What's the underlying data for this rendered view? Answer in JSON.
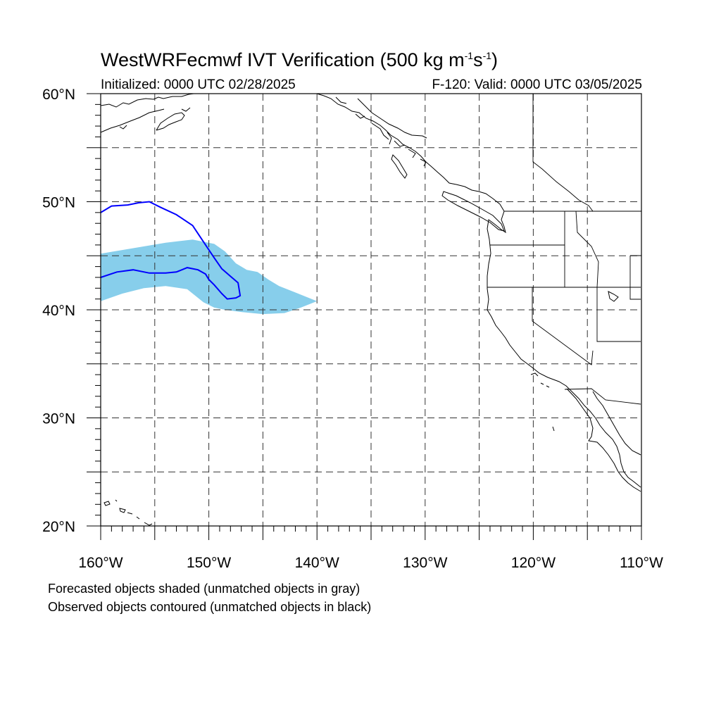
{
  "title": {
    "main": "WestWRFecmwf IVT Verification (500 kg m",
    "unit_exp1": "-1",
    "unit_mid": "s",
    "unit_exp2": "-1",
    "unit_close": ")"
  },
  "subtitle": {
    "initialized": "Initialized: 0000 UTC 02/28/2025",
    "valid": "F-120: Valid: 0000 UTC 03/05/2025"
  },
  "map": {
    "lon_range": [
      -160,
      -110
    ],
    "lat_range": [
      20,
      60
    ],
    "grid": true,
    "grid_style": "dashed",
    "lat_labels": [
      "20°N",
      "30°N",
      "40°N",
      "50°N",
      "60°N"
    ],
    "lon_labels": [
      "160°W",
      "150°W",
      "140°W",
      "130°W",
      "120°W",
      "110°W"
    ],
    "colors": {
      "forecast_shade": "#87ceeb",
      "observed_contour": "#0000ff",
      "coastline": "#000000",
      "grid": "#333333"
    },
    "forecast_object": [
      [
        -160,
        45.2
      ],
      [
        -157,
        45.7
      ],
      [
        -154,
        46.2
      ],
      [
        -151.5,
        46.5
      ],
      [
        -149.5,
        46.1
      ],
      [
        -148.5,
        45.4
      ],
      [
        -147.5,
        44.3
      ],
      [
        -146.5,
        43.7
      ],
      [
        -145.5,
        43.5
      ],
      [
        -144.5,
        42.8
      ],
      [
        -143.5,
        42.2
      ],
      [
        -142,
        41.6
      ],
      [
        -140,
        40.8
      ],
      [
        -141.5,
        40.2
      ],
      [
        -143,
        39.7
      ],
      [
        -145,
        39.6
      ],
      [
        -147,
        39.8
      ],
      [
        -148.5,
        40.0
      ],
      [
        -149.5,
        40.2
      ],
      [
        -150.5,
        40.7
      ],
      [
        -152,
        41.9
      ],
      [
        -154,
        42.2
      ],
      [
        -156,
        42.0
      ],
      [
        -158,
        41.5
      ],
      [
        -160,
        40.8
      ]
    ],
    "observed_object": [
      [
        -160,
        49.0
      ],
      [
        -159,
        49.6
      ],
      [
        -157.5,
        49.7
      ],
      [
        -156.5,
        49.9
      ],
      [
        -155.5,
        50.0
      ],
      [
        -154.5,
        49.5
      ],
      [
        -153,
        48.8
      ],
      [
        -151.5,
        47.8
      ],
      [
        -150.5,
        46.3
      ],
      [
        -149.5,
        44.8
      ],
      [
        -148.8,
        43.8
      ],
      [
        -148.0,
        43.1
      ],
      [
        -147.3,
        42.5
      ],
      [
        -147.1,
        41.3
      ],
      [
        -147.5,
        41.1
      ],
      [
        -148.3,
        41.0
      ],
      [
        -148.8,
        41.5
      ],
      [
        -149.5,
        42.3
      ],
      [
        -150.0,
        42.8
      ],
      [
        -150.3,
        43.3
      ],
      [
        -151.0,
        43.7
      ],
      [
        -152.0,
        43.9
      ],
      [
        -153.0,
        43.5
      ],
      [
        -154.0,
        43.4
      ],
      [
        -155.5,
        43.4
      ],
      [
        -157.0,
        43.7
      ],
      [
        -158.5,
        43.5
      ],
      [
        -160,
        43.0
      ]
    ]
  },
  "legend": {
    "line1": "Forecasted objects shaded (unmatched objects in gray)",
    "line2": "Observed objects contoured (unmatched objects in black)"
  }
}
